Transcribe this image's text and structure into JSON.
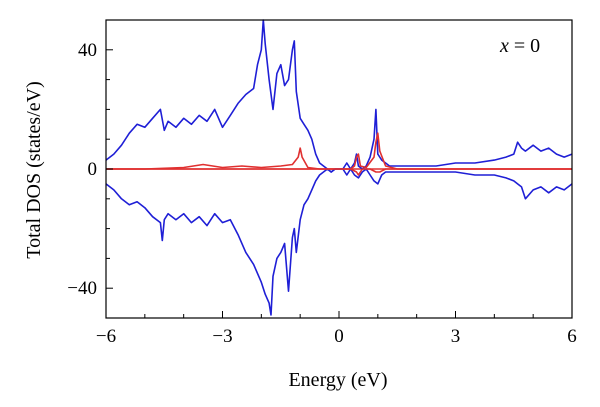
{
  "chart_data": {
    "type": "line",
    "title": "",
    "xlabel": "Energy (eV)",
    "ylabel": "Total DOS (states/eV)",
    "annotation": {
      "var": "x",
      "rest": " = 0"
    },
    "xlim": [
      -6,
      6
    ],
    "ylim": [
      -50,
      50
    ],
    "xticks": [
      -6,
      -3,
      0,
      3,
      6
    ],
    "xtick_labels": [
      "−6",
      "−3",
      "0",
      "3",
      "6"
    ],
    "yticks": [
      -40,
      0,
      40
    ],
    "ytick_labels": [
      "−40",
      "0",
      "40"
    ],
    "grid": false,
    "legend": "none",
    "series": [
      {
        "color": "#1f1fd6",
        "x": [
          -6.0,
          -5.8,
          -5.6,
          -5.4,
          -5.2,
          -5.0,
          -4.8,
          -4.6,
          -4.5,
          -4.4,
          -4.2,
          -4.0,
          -3.8,
          -3.6,
          -3.4,
          -3.2,
          -3.0,
          -2.8,
          -2.6,
          -2.4,
          -2.2,
          -2.1,
          -2.0,
          -1.95,
          -1.9,
          -1.8,
          -1.7,
          -1.6,
          -1.5,
          -1.4,
          -1.3,
          -1.2,
          -1.15,
          -1.1,
          -1.0,
          -0.9,
          -0.8,
          -0.7,
          -0.6,
          -0.5,
          -0.4,
          -0.3,
          -0.2,
          -0.1,
          0.0,
          0.1,
          0.2,
          0.3,
          0.4,
          0.45,
          0.5,
          0.6,
          0.7,
          0.8,
          0.9,
          0.95,
          1.0,
          1.1,
          1.2,
          1.3,
          1.5,
          1.8,
          2.0,
          2.5,
          3.0,
          3.5,
          4.0,
          4.3,
          4.5,
          4.6,
          4.7,
          4.8,
          5.0,
          5.2,
          5.4,
          5.6,
          5.8,
          6.0
        ],
        "y": [
          3,
          5,
          8,
          12,
          15,
          14,
          17,
          20,
          13,
          16,
          14,
          17,
          15,
          18,
          16,
          20,
          14,
          18,
          22,
          25,
          27,
          35,
          40,
          50,
          42,
          30,
          20,
          32,
          35,
          28,
          30,
          40,
          43,
          26,
          17,
          15,
          13,
          10,
          5,
          2,
          1,
          0,
          -1,
          0,
          0,
          0,
          -2,
          0,
          2,
          5,
          1,
          0,
          1,
          4,
          10,
          20,
          5,
          3,
          2,
          1,
          1,
          1,
          1,
          1,
          2,
          2,
          3,
          4,
          5,
          9,
          7,
          6,
          8,
          6,
          7,
          5,
          4,
          5
        ]
      },
      {
        "color": "#1f1fd6",
        "x": [
          -6.0,
          -5.8,
          -5.6,
          -5.4,
          -5.2,
          -5.0,
          -4.8,
          -4.6,
          -4.55,
          -4.5,
          -4.4,
          -4.2,
          -4.0,
          -3.8,
          -3.6,
          -3.4,
          -3.2,
          -3.0,
          -2.8,
          -2.6,
          -2.4,
          -2.2,
          -2.0,
          -1.9,
          -1.8,
          -1.75,
          -1.7,
          -1.6,
          -1.5,
          -1.4,
          -1.3,
          -1.2,
          -1.15,
          -1.1,
          -1.0,
          -0.9,
          -0.8,
          -0.7,
          -0.6,
          -0.5,
          -0.4,
          -0.3,
          -0.2,
          -0.1,
          0.0,
          0.1,
          0.2,
          0.3,
          0.4,
          0.5,
          0.6,
          0.7,
          0.8,
          0.9,
          1.0,
          1.1,
          1.2,
          1.3,
          1.5,
          1.8,
          2.0,
          2.5,
          3.0,
          3.5,
          4.0,
          4.3,
          4.5,
          4.6,
          4.7,
          4.8,
          5.0,
          5.2,
          5.4,
          5.6,
          5.8,
          6.0
        ],
        "y": [
          -5,
          -7,
          -10,
          -12,
          -11,
          -13,
          -16,
          -18,
          -24,
          -17,
          -15,
          -17,
          -15,
          -18,
          -16,
          -19,
          -15,
          -18,
          -17,
          -22,
          -28,
          -32,
          -38,
          -42,
          -45,
          -49,
          -36,
          -30,
          -28,
          -25,
          -41,
          -23,
          -20,
          -28,
          -17,
          -12,
          -10,
          -7,
          -4,
          -2,
          -1,
          0,
          -1,
          0,
          0,
          0,
          2,
          0,
          -2,
          -3,
          -1,
          0,
          -2,
          -4,
          -5,
          -2,
          -1,
          -1,
          -1,
          -1,
          -1,
          -1,
          -1,
          -2,
          -2,
          -3,
          -4,
          -5,
          -6,
          -10,
          -7,
          -6,
          -8,
          -6,
          -7,
          -5
        ]
      },
      {
        "color": "#e03030",
        "x": [
          -6.0,
          -5.0,
          -4.0,
          -3.5,
          -3.0,
          -2.5,
          -2.0,
          -1.5,
          -1.2,
          -1.05,
          -1.0,
          -0.95,
          -0.8,
          -0.5,
          0.0,
          0.3,
          0.4,
          0.45,
          0.5,
          0.55,
          0.7,
          0.9,
          0.95,
          1.0,
          1.05,
          1.2,
          1.5,
          2.0,
          3.0,
          4.0,
          5.0,
          6.0
        ],
        "y": [
          0,
          0,
          0.5,
          1.5,
          0.5,
          1,
          0.5,
          1,
          1.5,
          4,
          7,
          4,
          0.5,
          0,
          0,
          0,
          1,
          4,
          5,
          1,
          0.5,
          4,
          9,
          12,
          6,
          1,
          0,
          0,
          0,
          0,
          0,
          0
        ]
      },
      {
        "color": "#e03030",
        "x": [
          -6.0,
          -5.0,
          -4.0,
          -3.0,
          -2.0,
          -1.5,
          -1.0,
          -0.5,
          0.0,
          0.3,
          0.45,
          0.5,
          0.6,
          0.8,
          0.95,
          1.0,
          1.05,
          1.2,
          1.5,
          2.0,
          3.0,
          4.0,
          5.0,
          6.0
        ],
        "y": [
          0,
          0,
          0,
          0,
          0,
          0,
          0,
          0,
          0,
          0,
          -1,
          -2,
          0,
          0,
          -1,
          -1,
          -1,
          0,
          0,
          0,
          0,
          0,
          0,
          0
        ]
      }
    ]
  }
}
